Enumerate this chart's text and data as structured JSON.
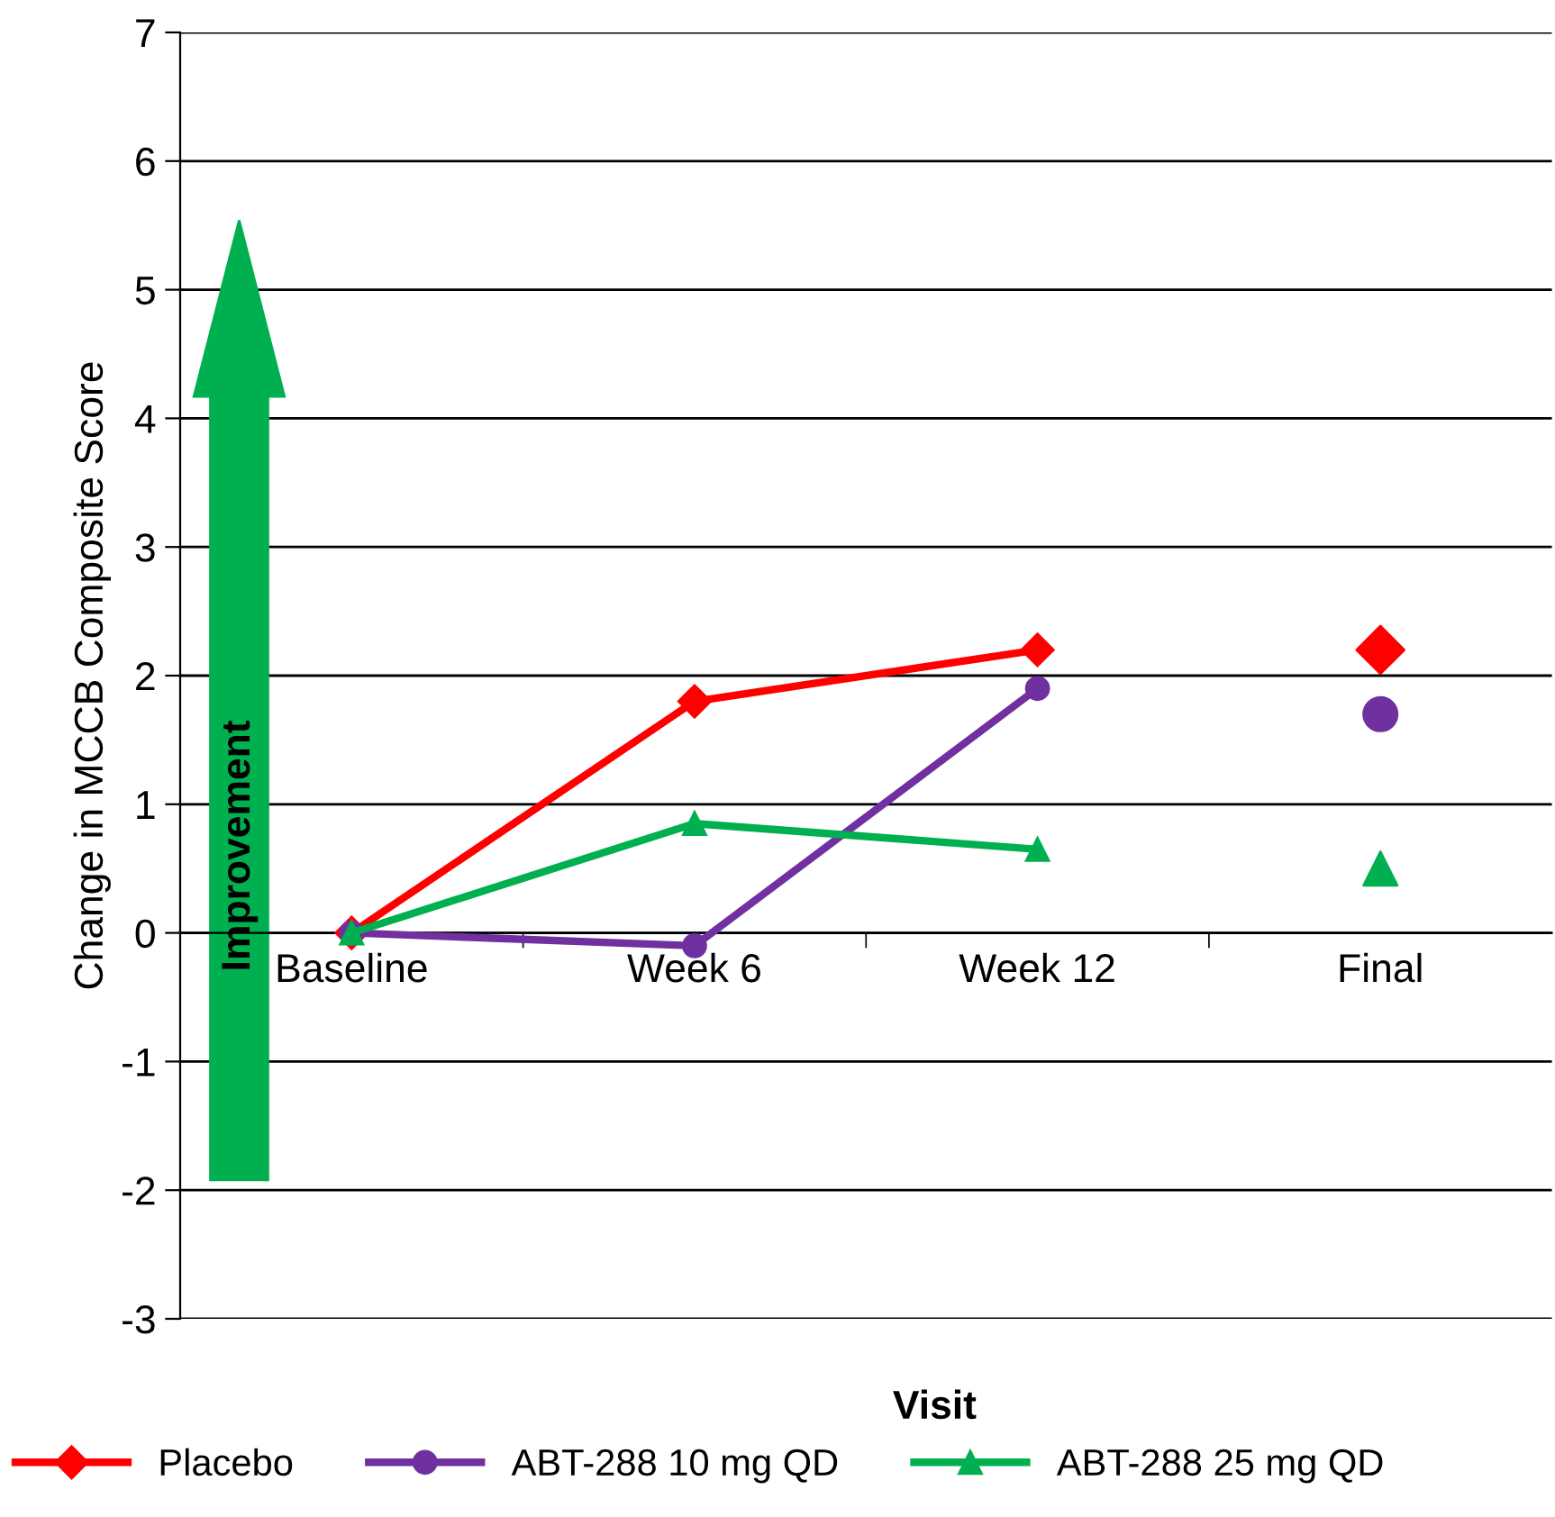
{
  "chart_data": {
    "type": "line",
    "xlabel": "Visit",
    "ylabel": "Change in MCCB Composite Score",
    "categories": [
      "Baseline",
      "Week 6",
      "Week 12",
      "Final"
    ],
    "series": [
      {
        "name": "Placebo",
        "color": "#ff0000",
        "marker": "diamond",
        "values": [
          0,
          1.8,
          2.2,
          null
        ]
      },
      {
        "name": "ABT-288 10 mg QD",
        "color": "#7030a0",
        "marker": "circle",
        "values": [
          0,
          -0.1,
          1.9,
          null
        ]
      },
      {
        "name": "ABT-288 25 mg QD",
        "color": "#00b050",
        "marker": "triangle",
        "values": [
          0,
          0.85,
          0.65,
          null
        ]
      },
      {
        "type": "scatter",
        "color": "#ff0000",
        "marker": "diamond",
        "values": [
          null,
          null,
          null,
          2.2
        ]
      },
      {
        "type": "scatter",
        "color": "#7030a0",
        "marker": "circle",
        "values": [
          null,
          null,
          null,
          1.7
        ]
      },
      {
        "type": "scatter",
        "color": "#00b050",
        "marker": "triangle",
        "values": [
          null,
          null,
          null,
          0.5
        ]
      }
    ],
    "ylim": [
      -3,
      7
    ],
    "yticks": [
      -3,
      -2,
      -1,
      0,
      1,
      2,
      3,
      4,
      5,
      6,
      7
    ],
    "grid": "y",
    "legend": "bottom",
    "annotations": [
      "Improvement"
    ]
  }
}
